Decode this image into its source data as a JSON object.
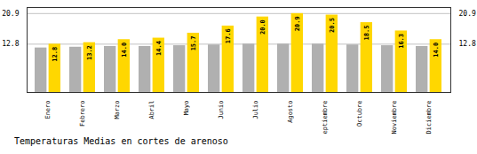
{
  "chart_data": {
    "type": "bar",
    "title": "Temperaturas Medias en cortes de arenoso",
    "categories": [
      "Enero",
      "Febrero",
      "Marzo",
      "Abril",
      "Mayo",
      "Junio",
      "Julio",
      "Agosto",
      "Septiembre",
      "Octubre",
      "Noviembre",
      "Diciembre"
    ],
    "series": [
      {
        "color": "#B0B0B0",
        "values": [
          11.8,
          12.0,
          12.2,
          12.2,
          12.4,
          12.6,
          12.8,
          12.8,
          12.8,
          12.6,
          12.4,
          12.2
        ]
      },
      {
        "color": "#FFD700",
        "values": [
          12.8,
          13.2,
          14.0,
          14.4,
          15.7,
          17.6,
          20.0,
          20.9,
          20.5,
          18.5,
          16.3,
          14.0
        ],
        "data_labels": true,
        "value_labels": [
          "12.8",
          "13.2",
          "14.0",
          "14.4",
          "15.7",
          "17.6",
          "20.0",
          "20.9",
          "20.5",
          "18.5",
          "16.3",
          "14.0"
        ]
      }
    ],
    "ylim": [
      0,
      22.5
    ],
    "yticks": [
      12.8,
      20.9
    ],
    "grid": true
  }
}
